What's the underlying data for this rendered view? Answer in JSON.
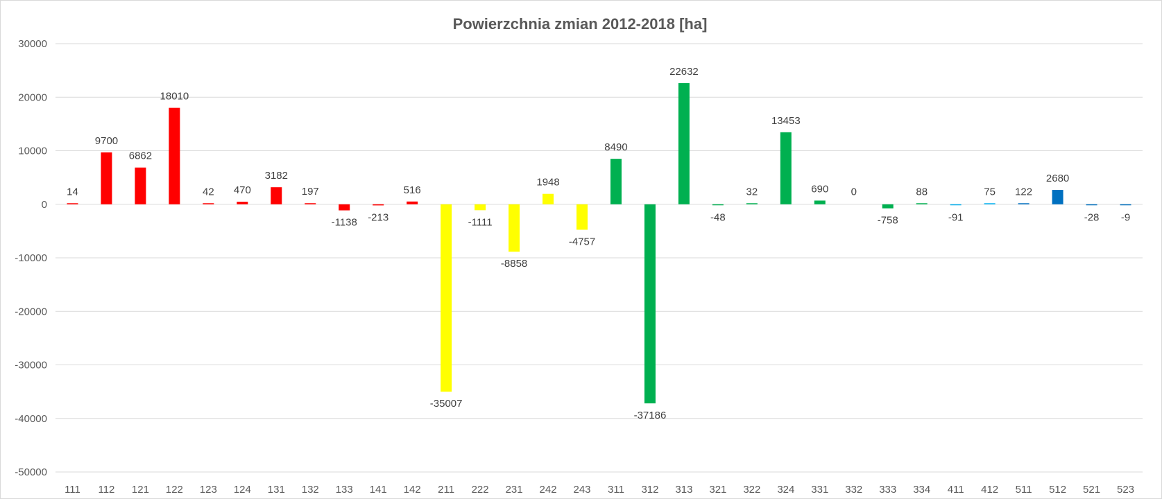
{
  "chart_data": {
    "type": "bar",
    "title": "Powierzchnia zmian 2012-2018 [ha]",
    "xlabel": "",
    "ylabel": "",
    "ylim": [
      -50000,
      30000
    ],
    "yticks": [
      30000,
      20000,
      10000,
      0,
      -10000,
      -20000,
      -30000,
      -40000,
      -50000
    ],
    "grid": true,
    "legend": "none",
    "categories": [
      "111",
      "112",
      "121",
      "122",
      "123",
      "124",
      "131",
      "132",
      "133",
      "141",
      "142",
      "211",
      "222",
      "231",
      "242",
      "243",
      "311",
      "312",
      "313",
      "321",
      "322",
      "324",
      "331",
      "332",
      "333",
      "334",
      "411",
      "412",
      "511",
      "512",
      "521",
      "523"
    ],
    "values": [
      14,
      9700,
      6862,
      18010,
      42,
      470,
      3182,
      197,
      -1138,
      -213,
      516,
      -35007,
      -1111,
      -8858,
      1948,
      -4757,
      8490,
      -37186,
      22632,
      -48,
      32,
      13453,
      690,
      0,
      -758,
      88,
      -91,
      75,
      122,
      2680,
      -28,
      -9
    ],
    "colors": [
      "#ff0000",
      "#ff0000",
      "#ff0000",
      "#ff0000",
      "#ff0000",
      "#ff0000",
      "#ff0000",
      "#ff0000",
      "#ff0000",
      "#ff0000",
      "#ff0000",
      "#ffff00",
      "#ffff00",
      "#ffff00",
      "#ffff00",
      "#ffff00",
      "#00b050",
      "#00b050",
      "#00b050",
      "#00b050",
      "#00b050",
      "#00b050",
      "#00b050",
      "#00b050",
      "#00b050",
      "#00b050",
      "#00b0f0",
      "#00b0f0",
      "#0070c0",
      "#0070c0",
      "#0070c0",
      "#0070c0"
    ],
    "data_labels": [
      "14",
      "9700",
      "6862",
      "18010",
      "42",
      "470",
      "3182",
      "197",
      "-1138",
      "-213",
      "516",
      "-35007",
      "-1111",
      "-8858",
      "1948",
      "-4757",
      "8490",
      "-37186",
      "22632",
      "-48",
      "32",
      "13453",
      "690",
      "0",
      "-758",
      "88",
      "-91",
      "75",
      "122",
      "2680",
      "-28",
      "-9"
    ]
  }
}
